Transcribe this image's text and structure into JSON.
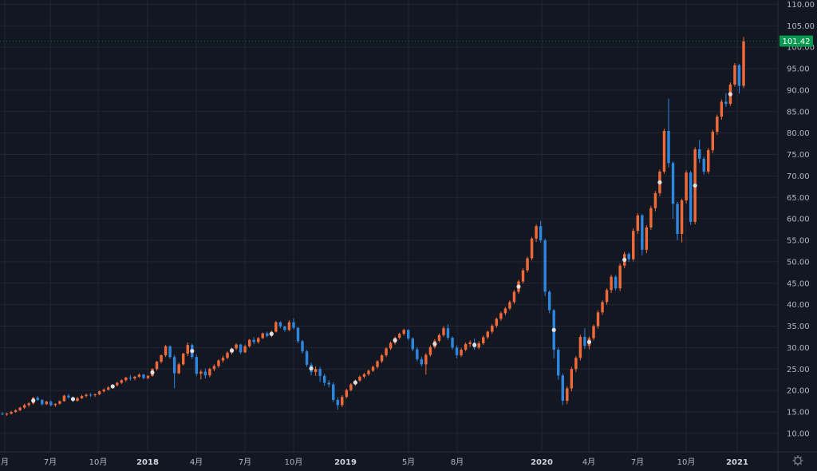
{
  "chart_data": {
    "type": "candlestick",
    "colors": {
      "background": "#131722",
      "up": "#ef6a3a",
      "down": "#2e86de",
      "grid": "#232734",
      "badge": "#089950",
      "marker": "#e0e0e0"
    },
    "y_axis": {
      "ticks": [
        "10.00",
        "15.00",
        "20.00",
        "25.00",
        "30.00",
        "35.00",
        "40.00",
        "45.00",
        "50.00",
        "55.00",
        "60.00",
        "65.00",
        "70.00",
        "75.00",
        "80.00",
        "85.00",
        "90.00",
        "95.00",
        "100.00",
        "105.00",
        "110.00"
      ],
      "range": [
        5.7,
        111
      ]
    },
    "x_axis": {
      "labels": [
        {
          "text": "月",
          "bold": false
        },
        {
          "text": "7月",
          "bold": false
        },
        {
          "text": "10月",
          "bold": false
        },
        {
          "text": "2018",
          "bold": true
        },
        {
          "text": "4月",
          "bold": false
        },
        {
          "text": "7月",
          "bold": false
        },
        {
          "text": "10月",
          "bold": false
        },
        {
          "text": "2019",
          "bold": true
        },
        {
          "text": "5月",
          "bold": false
        },
        {
          "text": "8月",
          "bold": false
        },
        {
          "text": "2020",
          "bold": true
        },
        {
          "text": "4月",
          "bold": false
        },
        {
          "text": "7月",
          "bold": false
        },
        {
          "text": "10月",
          "bold": false
        },
        {
          "text": "2021",
          "bold": true
        }
      ]
    },
    "last_price": "101.42",
    "candles": [
      [
        14.6,
        14.9,
        14.2,
        14.4
      ],
      [
        14.4,
        14.8,
        14.1,
        14.6
      ],
      [
        14.6,
        15.3,
        14.4,
        15.0
      ],
      [
        15.0,
        15.6,
        14.8,
        15.4
      ],
      [
        15.4,
        16.2,
        15.2,
        16.0
      ],
      [
        16.0,
        16.9,
        15.7,
        16.6
      ],
      [
        16.6,
        17.3,
        16.2,
        17.0
      ],
      [
        17.0,
        18.5,
        16.7,
        18.3
      ],
      [
        18.3,
        18.7,
        17.6,
        17.8
      ],
      [
        17.8,
        18.0,
        16.5,
        16.8
      ],
      [
        16.8,
        17.6,
        16.6,
        17.4
      ],
      [
        17.4,
        17.7,
        16.3,
        16.6
      ],
      [
        16.6,
        17.0,
        16.2,
        16.9
      ],
      [
        16.9,
        17.7,
        16.7,
        17.5
      ],
      [
        17.5,
        19.0,
        17.4,
        18.8
      ],
      [
        18.8,
        19.2,
        18.1,
        18.4
      ],
      [
        18.4,
        18.6,
        17.3,
        17.6
      ],
      [
        17.6,
        18.5,
        17.4,
        18.2
      ],
      [
        18.2,
        19.0,
        18.0,
        18.7
      ],
      [
        18.7,
        19.3,
        18.4,
        19.0
      ],
      [
        19.0,
        19.4,
        18.5,
        18.9
      ],
      [
        18.9,
        19.3,
        18.5,
        19.1
      ],
      [
        19.1,
        20.0,
        18.9,
        19.8
      ],
      [
        19.8,
        20.5,
        19.5,
        20.2
      ],
      [
        20.2,
        21.0,
        20.0,
        20.7
      ],
      [
        20.7,
        21.4,
        20.4,
        21.2
      ],
      [
        21.2,
        22.0,
        20.9,
        21.8
      ],
      [
        21.8,
        22.6,
        21.5,
        22.4
      ],
      [
        22.4,
        23.2,
        22.0,
        23.0
      ],
      [
        23.0,
        23.6,
        22.3,
        22.8
      ],
      [
        22.8,
        23.4,
        22.4,
        23.2
      ],
      [
        23.2,
        24.0,
        22.9,
        23.7
      ],
      [
        23.7,
        23.9,
        22.6,
        22.9
      ],
      [
        22.9,
        23.6,
        22.6,
        23.4
      ],
      [
        23.4,
        25.2,
        23.2,
        25.0
      ],
      [
        25.0,
        26.9,
        24.6,
        26.7
      ],
      [
        26.7,
        28.4,
        26.3,
        28.2
      ],
      [
        28.2,
        30.6,
        27.8,
        30.3
      ],
      [
        30.3,
        30.5,
        27.4,
        27.8
      ],
      [
        27.8,
        28.3,
        20.5,
        24.0
      ],
      [
        24.0,
        26.5,
        23.8,
        26.1
      ],
      [
        26.1,
        28.8,
        25.8,
        28.6
      ],
      [
        28.6,
        31.2,
        28.0,
        30.6
      ],
      [
        30.6,
        31.0,
        27.3,
        27.8
      ],
      [
        27.8,
        28.3,
        23.4,
        23.9
      ],
      [
        23.9,
        24.8,
        22.6,
        24.4
      ],
      [
        24.4,
        25.1,
        22.8,
        23.5
      ],
      [
        23.5,
        25.3,
        23.1,
        25.0
      ],
      [
        25.0,
        26.1,
        24.5,
        25.7
      ],
      [
        25.7,
        27.3,
        25.3,
        27.0
      ],
      [
        27.0,
        28.1,
        26.5,
        27.6
      ],
      [
        27.6,
        29.1,
        27.3,
        28.8
      ],
      [
        28.8,
        30.0,
        28.4,
        29.8
      ],
      [
        29.8,
        31.0,
        29.4,
        30.7
      ],
      [
        30.7,
        30.9,
        28.5,
        28.9
      ],
      [
        28.9,
        30.7,
        28.7,
        30.3
      ],
      [
        30.3,
        32.0,
        30.0,
        31.8
      ],
      [
        31.8,
        32.4,
        30.8,
        31.3
      ],
      [
        31.3,
        32.5,
        30.9,
        32.2
      ],
      [
        32.2,
        33.5,
        32.0,
        33.3
      ],
      [
        33.3,
        33.7,
        32.4,
        32.7
      ],
      [
        32.7,
        34.0,
        32.4,
        33.7
      ],
      [
        33.7,
        36.2,
        33.5,
        35.9
      ],
      [
        35.9,
        36.1,
        34.5,
        34.9
      ],
      [
        34.9,
        35.1,
        33.7,
        34.1
      ],
      [
        34.1,
        36.4,
        33.8,
        35.9
      ],
      [
        35.9,
        36.8,
        34.2,
        34.6
      ],
      [
        34.6,
        34.8,
        31.0,
        31.5
      ],
      [
        31.5,
        31.8,
        28.6,
        29.1
      ],
      [
        29.1,
        29.5,
        25.5,
        26.0
      ],
      [
        26.0,
        26.5,
        23.5,
        24.3
      ],
      [
        24.3,
        25.6,
        23.4,
        25.0
      ],
      [
        25.0,
        25.5,
        22.0,
        23.4
      ],
      [
        23.4,
        23.9,
        21.1,
        21.8
      ],
      [
        21.8,
        22.4,
        20.7,
        21.4
      ],
      [
        21.4,
        21.9,
        17.3,
        17.8
      ],
      [
        17.8,
        18.4,
        15.5,
        16.6
      ],
      [
        16.6,
        18.9,
        16.1,
        18.5
      ],
      [
        18.5,
        20.4,
        18.2,
        20.1
      ],
      [
        20.1,
        21.7,
        19.8,
        21.4
      ],
      [
        21.4,
        22.6,
        21.1,
        22.3
      ],
      [
        22.3,
        23.5,
        22.0,
        23.2
      ],
      [
        23.2,
        24.1,
        22.8,
        23.8
      ],
      [
        23.8,
        24.9,
        23.4,
        24.6
      ],
      [
        24.6,
        25.8,
        24.3,
        25.5
      ],
      [
        25.5,
        27.1,
        25.1,
        26.8
      ],
      [
        26.8,
        28.5,
        26.4,
        28.2
      ],
      [
        28.2,
        30.1,
        27.8,
        29.8
      ],
      [
        29.8,
        31.4,
        29.4,
        31.1
      ],
      [
        31.1,
        32.6,
        30.7,
        32.3
      ],
      [
        32.3,
        33.5,
        31.9,
        33.2
      ],
      [
        33.2,
        34.4,
        32.8,
        34.1
      ],
      [
        34.1,
        34.3,
        31.7,
        32.1
      ],
      [
        32.1,
        32.4,
        29.1,
        29.6
      ],
      [
        29.6,
        30.1,
        26.8,
        27.3
      ],
      [
        27.3,
        27.9,
        25.6,
        26.1
      ],
      [
        26.1,
        28.7,
        23.7,
        28.3
      ],
      [
        28.3,
        30.5,
        27.9,
        30.1
      ],
      [
        30.1,
        32.0,
        29.7,
        31.6
      ],
      [
        31.6,
        33.3,
        31.2,
        32.9
      ],
      [
        32.9,
        35.0,
        32.5,
        34.5
      ],
      [
        34.5,
        35.4,
        31.8,
        32.3
      ],
      [
        32.3,
        32.6,
        29.5,
        30.0
      ],
      [
        30.0,
        30.5,
        27.5,
        28.2
      ],
      [
        28.2,
        29.9,
        27.8,
        29.5
      ],
      [
        29.5,
        31.2,
        29.1,
        30.8
      ],
      [
        30.8,
        31.7,
        30.2,
        31.2
      ],
      [
        31.2,
        32.1,
        29.5,
        30.0
      ],
      [
        30.0,
        31.5,
        29.6,
        31.0
      ],
      [
        31.0,
        32.8,
        30.6,
        32.4
      ],
      [
        32.4,
        34.0,
        32.0,
        33.7
      ],
      [
        33.7,
        35.5,
        33.2,
        35.1
      ],
      [
        35.1,
        37.0,
        34.6,
        36.7
      ],
      [
        36.7,
        38.4,
        36.2,
        38.0
      ],
      [
        38.0,
        39.5,
        37.5,
        39.1
      ],
      [
        39.1,
        41.0,
        38.7,
        40.6
      ],
      [
        40.6,
        43.4,
        40.2,
        43.0
      ],
      [
        43.0,
        45.8,
        42.5,
        45.4
      ],
      [
        45.4,
        48.5,
        44.9,
        48.0
      ],
      [
        48.0,
        51.2,
        47.5,
        50.8
      ],
      [
        50.8,
        55.8,
        50.3,
        55.4
      ],
      [
        55.4,
        58.7,
        54.6,
        58.3
      ],
      [
        58.3,
        59.5,
        54.5,
        55.0
      ],
      [
        55.0,
        55.4,
        42.0,
        43.0
      ],
      [
        43.0,
        43.4,
        38.0,
        38.7
      ],
      [
        38.7,
        39.0,
        27.5,
        29.5
      ],
      [
        29.5,
        30.0,
        22.5,
        23.5
      ],
      [
        23.5,
        24.0,
        16.6,
        17.6
      ],
      [
        17.6,
        21.0,
        16.8,
        20.5
      ],
      [
        20.5,
        25.5,
        19.8,
        25.0
      ],
      [
        25.0,
        28.0,
        24.3,
        27.6
      ],
      [
        27.6,
        33.0,
        27.0,
        32.5
      ],
      [
        32.5,
        34.5,
        29.7,
        30.4
      ],
      [
        30.4,
        32.6,
        29.6,
        32.2
      ],
      [
        32.2,
        35.4,
        31.7,
        35.0
      ],
      [
        35.0,
        38.7,
        34.4,
        38.2
      ],
      [
        38.2,
        41.0,
        37.6,
        40.6
      ],
      [
        40.6,
        43.8,
        40.0,
        43.4
      ],
      [
        43.4,
        47.0,
        42.7,
        46.5
      ],
      [
        46.5,
        46.9,
        43.3,
        43.8
      ],
      [
        43.8,
        49.6,
        43.2,
        49.1
      ],
      [
        49.1,
        52.3,
        48.5,
        51.8
      ],
      [
        51.8,
        52.2,
        50.0,
        50.6
      ],
      [
        50.6,
        57.8,
        50.1,
        57.2
      ],
      [
        57.2,
        61.3,
        56.5,
        60.8
      ],
      [
        60.8,
        61.1,
        51.5,
        52.8
      ],
      [
        52.8,
        58.5,
        52.0,
        58.0
      ],
      [
        58.0,
        63.0,
        57.4,
        62.5
      ],
      [
        62.5,
        66.5,
        61.8,
        66.0
      ],
      [
        66.0,
        71.5,
        65.3,
        71.0
      ],
      [
        71.0,
        81.0,
        70.5,
        80.5
      ],
      [
        80.5,
        88.0,
        72.0,
        73.0
      ],
      [
        73.0,
        73.4,
        60.0,
        63.5
      ],
      [
        63.5,
        64.0,
        55.0,
        56.5
      ],
      [
        56.5,
        64.7,
        54.5,
        64.3
      ],
      [
        64.3,
        71.3,
        63.6,
        70.8
      ],
      [
        70.8,
        71.2,
        58.6,
        59.3
      ],
      [
        59.3,
        76.7,
        58.7,
        76.2
      ],
      [
        76.2,
        78.4,
        73.0,
        74.0
      ],
      [
        74.0,
        74.5,
        70.3,
        71.0
      ],
      [
        71.0,
        76.5,
        70.5,
        76.0
      ],
      [
        76.0,
        80.8,
        75.3,
        80.3
      ],
      [
        80.3,
        84.3,
        79.6,
        83.8
      ],
      [
        83.8,
        87.8,
        83.1,
        87.3
      ],
      [
        87.3,
        89.3,
        86.1,
        86.8
      ],
      [
        86.8,
        91.8,
        86.3,
        91.3
      ],
      [
        91.3,
        96.3,
        90.8,
        95.8
      ],
      [
        95.8,
        96.1,
        89.2,
        91.0
      ],
      [
        91.0,
        102.4,
        90.5,
        101.4
      ]
    ]
  }
}
